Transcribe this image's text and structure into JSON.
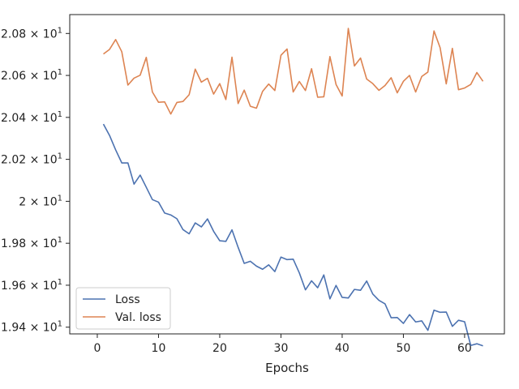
{
  "chart_data": {
    "type": "line",
    "xlabel": "Epochs",
    "ylabel": "",
    "xlim": [
      -4.5,
      66.5
    ],
    "ylim": [
      19.368,
      20.89
    ],
    "x_ticks": [
      0,
      10,
      20,
      30,
      40,
      50,
      60
    ],
    "y_ticks": [
      {
        "value": 19.4,
        "mantissa": "1.94",
        "times": "×",
        "base": "10",
        "exp": "1"
      },
      {
        "value": 19.6,
        "mantissa": "1.96",
        "times": "×",
        "base": "10",
        "exp": "1"
      },
      {
        "value": 19.8,
        "mantissa": "1.98",
        "times": "×",
        "base": "10",
        "exp": "1"
      },
      {
        "value": 20.0,
        "mantissa": "2",
        "times": "×",
        "base": "10",
        "exp": "1"
      },
      {
        "value": 20.2,
        "mantissa": "2.02",
        "times": "×",
        "base": "10",
        "exp": "1"
      },
      {
        "value": 20.4,
        "mantissa": "2.04",
        "times": "×",
        "base": "10",
        "exp": "1"
      },
      {
        "value": 20.6,
        "mantissa": "2.06",
        "times": "×",
        "base": "10",
        "exp": "1"
      },
      {
        "value": 20.8,
        "mantissa": "2.08",
        "times": "×",
        "base": "10",
        "exp": "1"
      }
    ],
    "legend": {
      "placement": "lower-left"
    },
    "x": [
      1,
      2,
      3,
      4,
      5,
      6,
      7,
      8,
      9,
      10,
      11,
      12,
      13,
      14,
      15,
      16,
      17,
      18,
      19,
      20,
      21,
      22,
      23,
      24,
      25,
      26,
      27,
      28,
      29,
      30,
      31,
      32,
      33,
      34,
      35,
      36,
      37,
      38,
      39,
      40,
      41,
      42,
      43,
      44,
      45,
      46,
      47,
      48,
      49,
      50,
      51,
      52,
      53,
      54,
      55,
      56,
      57,
      58,
      59,
      60,
      61,
      62,
      63
    ],
    "series": [
      {
        "name": "Loss",
        "color": "#4c72b0",
        "values": [
          20.368,
          20.314,
          20.245,
          20.183,
          20.183,
          20.082,
          20.125,
          20.067,
          20.008,
          19.996,
          19.944,
          19.935,
          19.917,
          19.865,
          19.845,
          19.897,
          19.878,
          19.916,
          19.857,
          19.812,
          19.809,
          19.864,
          19.781,
          19.704,
          19.714,
          19.691,
          19.676,
          19.697,
          19.665,
          19.734,
          19.722,
          19.724,
          19.659,
          19.578,
          19.621,
          19.588,
          19.649,
          19.535,
          19.599,
          19.542,
          19.539,
          19.58,
          19.576,
          19.62,
          19.558,
          19.528,
          19.511,
          19.445,
          19.446,
          19.418,
          19.46,
          19.425,
          19.43,
          19.385,
          19.481,
          19.471,
          19.472,
          19.404,
          19.433,
          19.426,
          19.313,
          19.321,
          19.311
        ]
      },
      {
        "name": "Val. loss",
        "color": "#dd8452",
        "values": [
          20.702,
          20.724,
          20.771,
          20.713,
          20.554,
          20.587,
          20.601,
          20.686,
          20.521,
          20.472,
          20.474,
          20.416,
          20.471,
          20.476,
          20.508,
          20.63,
          20.568,
          20.586,
          20.511,
          20.561,
          20.485,
          20.687,
          20.466,
          20.53,
          20.453,
          20.444,
          20.524,
          20.559,
          20.528,
          20.696,
          20.726,
          20.521,
          20.571,
          20.528,
          20.632,
          20.496,
          20.498,
          20.69,
          20.557,
          20.502,
          20.824,
          20.645,
          20.683,
          20.583,
          20.561,
          20.529,
          20.552,
          20.589,
          20.517,
          20.572,
          20.6,
          20.521,
          20.595,
          20.616,
          20.812,
          20.732,
          20.56,
          20.729,
          20.532,
          20.54,
          20.557,
          20.614,
          20.572
        ]
      }
    ]
  }
}
